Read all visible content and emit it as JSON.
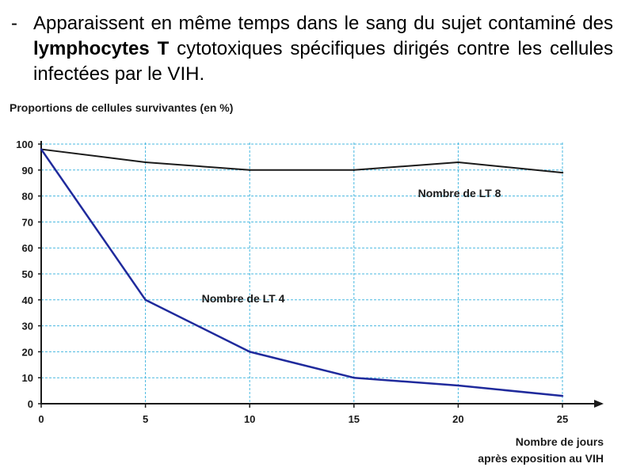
{
  "intro": {
    "dash": "-",
    "part1": "Apparaissent en même temps dans le sang du sujet contaminé des ",
    "bold": "lymphocytes T",
    "part2": " cytotoxiques spécifiques dirigés contre les cellules infectées par le VIH."
  },
  "chart_data": {
    "type": "line",
    "title": "",
    "ylabel": "Proportions de cellules survivantes (en %)",
    "xlabel_line1": "Nombre de jours",
    "xlabel_line2": "après exposition au VIH",
    "x": [
      0,
      5,
      10,
      15,
      20,
      25
    ],
    "x_ticks": [
      0,
      5,
      10,
      15,
      20,
      25
    ],
    "y_ticks": [
      0,
      10,
      20,
      30,
      40,
      50,
      60,
      70,
      80,
      90,
      100
    ],
    "xlim": [
      0,
      25
    ],
    "ylim": [
      0,
      100
    ],
    "grid": true,
    "series": [
      {
        "name": "Nombre de LT 8",
        "values": [
          98,
          93,
          90,
          90,
          93,
          89
        ],
        "color": "#1a1a1a"
      },
      {
        "name": "Nombre de LT 4",
        "values": [
          98,
          40,
          20,
          10,
          7,
          3
        ],
        "color": "#1f2a9c"
      }
    ],
    "grid_color": "#48b8e0"
  }
}
